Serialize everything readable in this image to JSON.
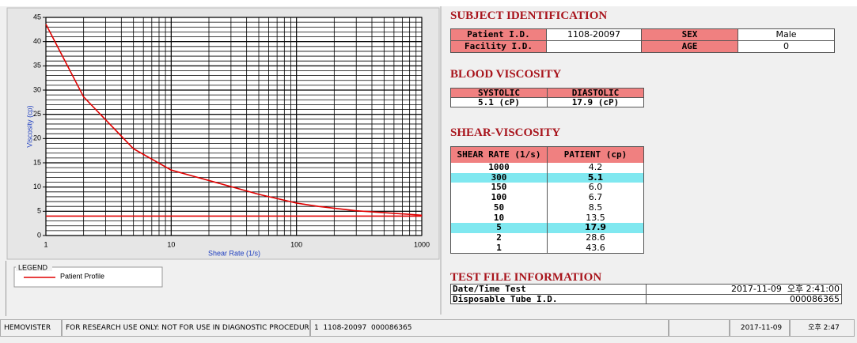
{
  "chart_data": {
    "type": "line",
    "ylabel": "Viscosity (cp)",
    "xlabel": "Shear Rate (1/s)",
    "xscale": "log",
    "xlim": [
      1,
      1000
    ],
    "ylim": [
      0,
      45
    ],
    "xticks": [
      1,
      10,
      100,
      1000
    ],
    "yticks": [
      0,
      5,
      10,
      15,
      20,
      25,
      30,
      35,
      40,
      45
    ],
    "grid": true,
    "legend_title": "LEGEND",
    "series": [
      {
        "name": "Patient Profile",
        "color": "#e00000",
        "x": [
          1,
          2,
          5,
          10,
          50,
          100,
          150,
          300,
          1000
        ],
        "values": [
          43.6,
          28.6,
          17.9,
          13.5,
          8.5,
          6.7,
          6.0,
          5.1,
          4.2
        ]
      },
      {
        "color": "#e00000",
        "x": [
          1,
          1000
        ],
        "values": [
          4,
          4
        ]
      }
    ]
  },
  "subject_identification": {
    "title": "SUBJECT IDENTIFICATION",
    "rows": [
      [
        "Patient I.D.",
        "1108-20097",
        "SEX",
        "Male"
      ],
      [
        "Facility I.D.",
        null,
        "AGE",
        "0"
      ]
    ]
  },
  "blood_viscosity": {
    "title": "BLOOD VISCOSITY",
    "headers": [
      "SYSTOLIC",
      "DIASTOLIC"
    ],
    "values": [
      "5.1 (cP)",
      "17.9 (cP)"
    ]
  },
  "shear_viscosity": {
    "title": "SHEAR-VISCOSITY",
    "headers": [
      "SHEAR RATE (1/s)",
      "PATIENT (cp)"
    ],
    "rows": [
      [
        "1000",
        "4.2"
      ],
      [
        "300",
        "5.1"
      ],
      [
        "150",
        "6.0"
      ],
      [
        "100",
        "6.7"
      ],
      [
        "50",
        "8.5"
      ],
      [
        "10",
        "13.5"
      ],
      [
        "5",
        "17.9"
      ],
      [
        "2",
        "28.6"
      ],
      [
        "1",
        "43.6"
      ]
    ],
    "highlighted_rows": [
      1,
      6
    ]
  },
  "test_file_information": {
    "title": "TEST FILE INFORMATION",
    "rows": [
      [
        "Date/Time Test",
        "2017-11-09  오후 2:41:00"
      ],
      [
        "Disposable Tube I.D.",
        "000086365"
      ]
    ]
  },
  "status_bar": [
    "HEMOVISTER",
    "FOR RESEARCH USE ONLY: NOT FOR USE IN DIAGNOSTIC PROCEDURES",
    "1  1108-20097  000086365",
    null,
    "2017-11-09",
    "오후 2:47"
  ]
}
